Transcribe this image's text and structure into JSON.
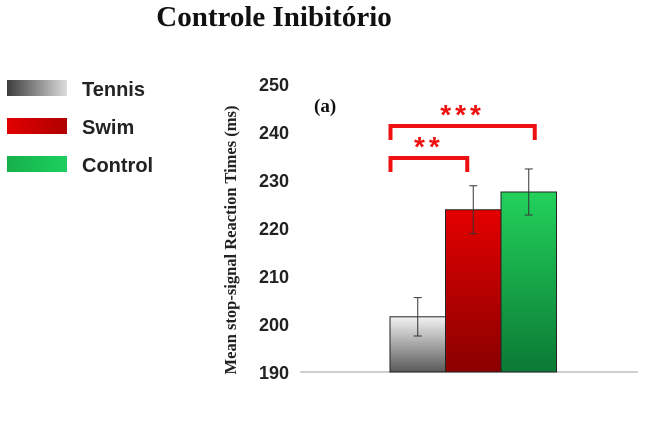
{
  "chart_data": {
    "type": "bar",
    "title": "Controle Inibitório",
    "panel_label": "(a)",
    "ylabel": "Mean stop-signal Reaction Times (ms)",
    "xlabel": "",
    "ylim": [
      190,
      250
    ],
    "yticks": [
      "190",
      "200",
      "210",
      "220",
      "230",
      "240",
      "250"
    ],
    "categories": [
      "Tennis",
      "Swim",
      "Control"
    ],
    "values": [
      201.5,
      223.8,
      227.5
    ],
    "errors": [
      4.0,
      5.0,
      4.8
    ],
    "legend": {
      "position": "left",
      "entries": [
        {
          "label": "Tennis",
          "color": "#909090"
        },
        {
          "label": "Swim",
          "color": "#c40000"
        },
        {
          "label": "Control",
          "color": "#12a64a"
        }
      ]
    },
    "significance": [
      {
        "from": 1,
        "to": 2,
        "label": "***"
      },
      {
        "from": 1,
        "to": 1,
        "label": "**"
      }
    ],
    "colors": {
      "tennis_light": "#f2f2f2",
      "tennis_dark": "#5a5a5a",
      "swim_light": "#e30000",
      "swim_dark": "#8a0000",
      "control_light": "#23d15c",
      "control_dark": "#0b7a35",
      "significance": "#ee1111"
    }
  }
}
